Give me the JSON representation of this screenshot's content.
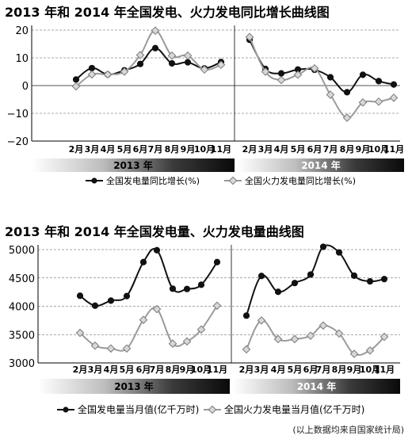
{
  "chart_data": [
    {
      "type": "line",
      "title": "2013 年和 2014 年全国发电、火力发电同比增长曲线图",
      "xlabel": "",
      "ylabel": "",
      "ylim": [
        -20,
        20
      ],
      "yticks": [
        "20",
        "10",
        "0",
        "−10",
        "−20"
      ],
      "grid": "horizontal dashed",
      "legend_position": "bottom",
      "groups": [
        {
          "label": "2013 年",
          "categories": [
            "2月",
            "3月",
            "4月",
            "5月",
            "6月",
            "7月",
            "8月",
            "9月",
            "10月",
            "11月"
          ]
        },
        {
          "label": "2014 年",
          "categories": [
            "2月",
            "3月",
            "4月",
            "5月",
            "6月",
            "7月",
            "8月",
            "9月",
            "10月",
            "11月"
          ]
        }
      ],
      "series": [
        {
          "name": "全国发电量同比增长(%)",
          "marker": "circle",
          "color": "#111111",
          "values_2013": [
            2.2,
            6.3,
            4.0,
            5.5,
            7.8,
            13.5,
            8.0,
            8.4,
            6.2,
            8.5
          ],
          "values_2014": [
            16.5,
            6.0,
            4.4,
            5.8,
            5.7,
            3.0,
            -2.4,
            3.9,
            1.6,
            0.4
          ]
        },
        {
          "name": "全国火力发电量同比增长(%)",
          "marker": "diamond",
          "color": "#9a9a9a",
          "values_2013": [
            -0.3,
            4.0,
            4.0,
            5.0,
            11.0,
            19.8,
            10.8,
            10.8,
            5.8,
            7.5
          ],
          "values_2014": [
            17.5,
            5.0,
            2.0,
            3.9,
            6.2,
            -3.3,
            -11.6,
            -6.1,
            -5.8,
            -4.4
          ]
        }
      ]
    },
    {
      "type": "line",
      "title": "2013 年和 2014 年全国发电量、火力发电量曲线图",
      "xlabel": "",
      "ylabel": "",
      "ylim": [
        3000,
        5000
      ],
      "yticks": [
        "5000",
        "4500",
        "4000",
        "3500",
        "3000"
      ],
      "grid": "horizontal dashed",
      "legend_position": "bottom",
      "groups": [
        {
          "label": "2013 年",
          "categories": [
            "2月",
            "3月",
            "4月",
            "5月",
            "6月",
            "7月",
            "8月",
            "9月",
            "10月",
            "11月"
          ]
        },
        {
          "label": "2014 年",
          "categories": [
            "2月",
            "3月",
            "4月",
            "5月",
            "6月",
            "7月",
            "8月",
            "9月",
            "10月",
            "11月"
          ]
        }
      ],
      "series": [
        {
          "name": "全国发电量当月值(亿千万时)",
          "marker": "circle",
          "color": "#111111",
          "values_2013": [
            4185,
            4010,
            4100,
            4180,
            4780,
            4990,
            4310,
            4305,
            4380,
            4780
          ],
          "values_2014": [
            3835,
            4535,
            4255,
            4410,
            4560,
            5050,
            4950,
            4540,
            4440,
            4480
          ]
        },
        {
          "name": "全国火力发电量当月值(亿千万时)",
          "marker": "diamond",
          "color": "#9a9a9a",
          "values_2013": [
            3530,
            3305,
            3255,
            3255,
            3760,
            3950,
            3340,
            3380,
            3590,
            4010
          ],
          "values_2014": [
            3240,
            3750,
            3420,
            3420,
            3480,
            3660,
            3520,
            3160,
            3220,
            3460
          ]
        }
      ]
    }
  ],
  "source_note": "(以上数据均来自国家统计局)"
}
